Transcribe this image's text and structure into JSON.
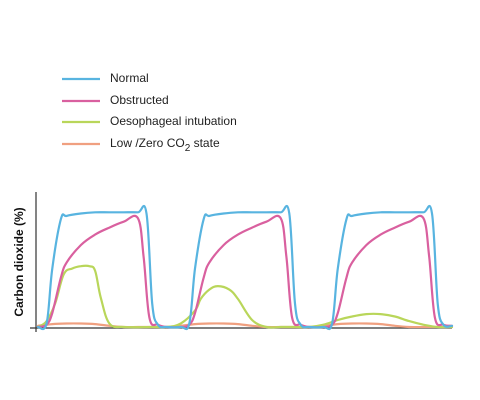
{
  "chart_data": {
    "type": "line",
    "title": "",
    "xlabel": "",
    "ylabel": "Carbon dioxide (%)",
    "ylim": [
      0,
      1
    ],
    "grid": false,
    "legend_position": "top-left",
    "series": [
      {
        "name": "Normal",
        "color": "#58b4e0",
        "x": [
          0,
          3,
          5,
          8,
          10,
          15,
          20,
          25,
          30,
          35,
          38,
          40,
          42,
          45,
          50,
          53,
          55,
          58,
          60,
          65,
          70,
          75,
          80,
          85,
          88,
          90,
          92,
          95,
          100,
          103,
          105,
          108,
          110,
          115,
          120,
          125,
          130,
          135,
          138,
          140,
          142,
          145
        ],
        "y": [
          0.0,
          0.03,
          0.5,
          0.92,
          0.95,
          0.97,
          0.98,
          0.98,
          0.98,
          0.98,
          0.97,
          0.2,
          0.02,
          0.0,
          0.0,
          0.03,
          0.5,
          0.92,
          0.95,
          0.97,
          0.98,
          0.98,
          0.98,
          0.98,
          0.97,
          0.2,
          0.02,
          0.0,
          0.0,
          0.03,
          0.5,
          0.92,
          0.95,
          0.97,
          0.98,
          0.98,
          0.98,
          0.98,
          0.97,
          0.2,
          0.02,
          0.01
        ]
      },
      {
        "name": "Obstructed",
        "color": "#d9609f",
        "x": [
          0,
          3,
          5,
          8,
          10,
          15,
          20,
          25,
          30,
          35,
          37,
          39,
          42,
          45,
          50,
          53,
          55,
          58,
          60,
          65,
          70,
          75,
          80,
          85,
          87,
          89,
          92,
          95,
          100,
          103,
          105,
          108,
          110,
          115,
          120,
          125,
          130,
          135,
          137,
          139,
          142,
          145
        ],
        "y": [
          0.0,
          0.02,
          0.12,
          0.42,
          0.55,
          0.7,
          0.79,
          0.85,
          0.9,
          0.93,
          0.6,
          0.08,
          0.02,
          0.0,
          0.0,
          0.02,
          0.12,
          0.42,
          0.55,
          0.7,
          0.79,
          0.85,
          0.9,
          0.93,
          0.6,
          0.08,
          0.02,
          0.0,
          0.0,
          0.02,
          0.12,
          0.42,
          0.55,
          0.7,
          0.79,
          0.85,
          0.9,
          0.93,
          0.6,
          0.08,
          0.02,
          0.01
        ]
      },
      {
        "name": "Oesophageal intubation",
        "color": "#b9d65a",
        "x": [
          0,
          3,
          6,
          9,
          12,
          15,
          18,
          20,
          22,
          25,
          30,
          40,
          45,
          50,
          55,
          57,
          60,
          63,
          67,
          70,
          75,
          80,
          85,
          90,
          95,
          100,
          105,
          110,
          115,
          120,
          125,
          130,
          135,
          140,
          145
        ],
        "y": [
          0.0,
          0.05,
          0.2,
          0.45,
          0.5,
          0.52,
          0.52,
          0.48,
          0.25,
          0.03,
          0.0,
          0.0,
          0.0,
          0.03,
          0.14,
          0.24,
          0.32,
          0.35,
          0.32,
          0.24,
          0.06,
          0.0,
          0.0,
          0.0,
          0.0,
          0.02,
          0.06,
          0.09,
          0.11,
          0.11,
          0.09,
          0.05,
          0.02,
          0.0,
          0.0
        ]
      },
      {
        "name": "Low /Zero CO₂ state",
        "color": "#f0a080",
        "x": [
          0,
          5,
          10,
          15,
          20,
          25,
          30,
          35,
          40,
          45,
          50,
          55,
          60,
          65,
          70,
          75,
          80,
          85,
          90,
          95,
          100,
          105,
          110,
          115,
          120,
          125,
          130,
          135,
          140,
          145
        ],
        "y": [
          0.01,
          0.025,
          0.03,
          0.03,
          0.025,
          0.01,
          0.0,
          0.0,
          0.0,
          0.0,
          0.01,
          0.025,
          0.03,
          0.03,
          0.025,
          0.01,
          0.0,
          0.0,
          0.0,
          0.0,
          0.01,
          0.025,
          0.03,
          0.03,
          0.025,
          0.01,
          0.0,
          0.0,
          0.0,
          0.0
        ]
      }
    ],
    "legend": [
      {
        "label": "Normal",
        "color": "#58b4e0"
      },
      {
        "label": "Obstructed",
        "color": "#d9609f"
      },
      {
        "label": "Oesophageal intubation",
        "color": "#b9d65a"
      },
      {
        "label": "Low /Zero CO₂ state",
        "label_prefix": "Low /Zero CO",
        "label_sub": "2",
        "label_suffix": " state",
        "color": "#f0a080"
      }
    ]
  }
}
